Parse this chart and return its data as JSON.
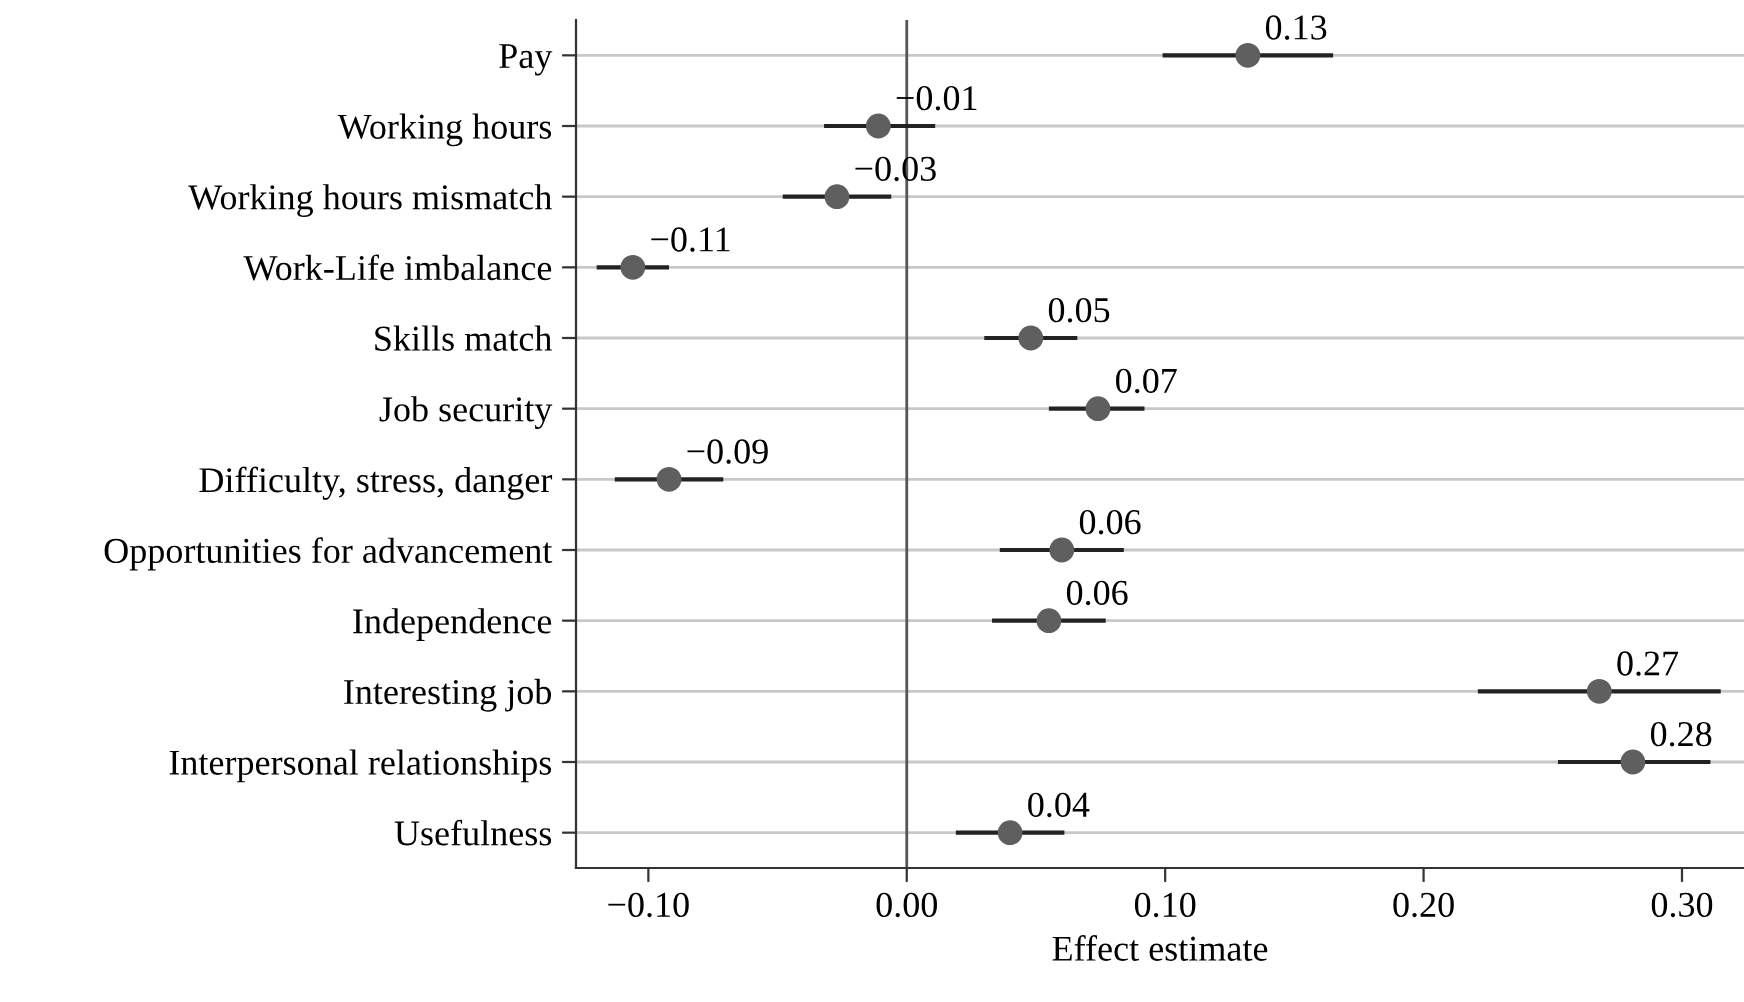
{
  "chart_data": {
    "type": "scatter",
    "orientation": "horizontal",
    "xlabel": "Effect estimate",
    "categories": [
      "Pay",
      "Working hours",
      "Working hours mismatch",
      "Work-Life imbalance",
      "Skills match",
      "Job security",
      "Difficulty, stress, danger",
      "Opportunities for advancement",
      "Independence",
      "Interesting job",
      "Interpersonal relationships",
      "Usefulness"
    ],
    "series": [
      {
        "color": "#5f5f5f",
        "values": [
          0.132,
          -0.011,
          -0.027,
          -0.106,
          0.048,
          0.074,
          -0.092,
          0.06,
          0.055,
          0.268,
          0.281,
          0.04
        ],
        "errors": [
          [
            0.099,
            0.165
          ],
          [
            -0.032,
            0.011
          ],
          [
            -0.048,
            -0.006
          ],
          [
            -0.12,
            -0.092
          ],
          [
            0.03,
            0.066
          ],
          [
            0.055,
            0.092
          ],
          [
            -0.113,
            -0.071
          ],
          [
            0.036,
            0.084
          ],
          [
            0.033,
            0.077
          ],
          [
            0.221,
            0.315
          ],
          [
            0.252,
            0.311
          ],
          [
            0.019,
            0.061
          ]
        ],
        "value_labels": [
          "0.13",
          "−0.01",
          "−0.03",
          "−0.11",
          "0.05",
          "0.07",
          "−0.09",
          "0.06",
          "0.06",
          "0.27",
          "0.28",
          "0.04"
        ]
      }
    ],
    "xlim": [
      -0.128,
      0.324
    ],
    "xticks": [
      {
        "value": -0.1,
        "label": "−0.10"
      },
      {
        "value": 0.0,
        "label": "0.00"
      },
      {
        "value": 0.1,
        "label": "0.10"
      },
      {
        "value": 0.2,
        "label": "0.20"
      },
      {
        "value": 0.3,
        "label": "0.30"
      }
    ],
    "ref_lines": [
      {
        "axis": "x",
        "value": 0,
        "color": "#555555"
      }
    ],
    "grid": "y",
    "marker": "circle"
  }
}
